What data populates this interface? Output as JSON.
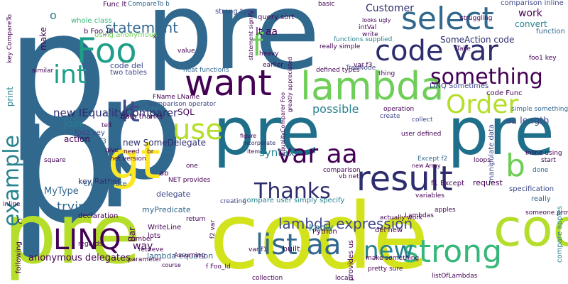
{
  "word_cloud": {
    "background": "#ffffff",
    "palette": [
      "#440154",
      "#482878",
      "#3e4989",
      "#31688e",
      "#26828e",
      "#1f9e89",
      "#35b779",
      "#6ece58",
      "#b5de2b",
      "#fde725"
    ],
    "words": [
      "p",
      "pre",
      "p",
      "p",
      "pre",
      "code",
      "pre",
      "code",
      "pre",
      "code",
      "select",
      "code var",
      "lambda",
      "want",
      "Foo",
      "gt",
      "result",
      "strong",
      "list aa",
      "var aa",
      "LINQ",
      "Thanks",
      "lt",
      "use",
      "int",
      "Order",
      "something",
      "example",
      "new",
      "lambda expression",
      "b",
      "f",
      "statement",
      "new IEqualityComparer",
      "syntax",
      "aa length",
      "possible",
      "key Rather",
      "MyType",
      "trying",
      "lt aa",
      "SomeAction code",
      "strong type",
      "Customer",
      "work",
      "convert",
      "function",
      "comparison inline",
      "query sort",
      "Func lt",
      "CompareTo b",
      "o",
      "make",
      "whole class",
      "b Foo_Id",
      "using anonymous",
      "code del",
      "two tables",
      "neat functions",
      "functions supplied",
      "defined types",
      "TreeNode",
      "LINQ Sometimes",
      "code Func",
      "simple something",
      "print",
      "join",
      "action",
      "new SomeDelegate",
      "f3 f1",
      "data thanks",
      "comparison operator",
      "FName LName",
      "SQL",
      "run",
      "tell",
      "foo2 key",
      "figure",
      "incorporate",
      "collect",
      "user defined",
      "operation",
      "create",
      "give",
      "need",
      "br",
      "one",
      "ab",
      "delegate",
      "changeDate",
      "myPredicate",
      "declaration",
      "return",
      "creating",
      "compare user simply specify",
      "know",
      "del new",
      "built",
      "Python",
      "loops",
      "inline using",
      "manipulate data",
      "start",
      "done",
      "request",
      "specification",
      "really",
      "apples",
      "f1 Except",
      "Except f2",
      "comparison",
      "vb net",
      "variables",
      "someone provide",
      "compare apples",
      "lambda equation",
      "way",
      "Bar",
      "WriteLine",
      "lots",
      "number",
      "retrieve",
      "regards",
      "anonymous delegates",
      "following",
      "local1",
      "Assuming",
      "NET provides",
      "f Foo_Id",
      "var f1",
      "collection",
      "provides us",
      "make something",
      "pretty sure",
      "listOfLambdas",
      "really simple",
      "struggling",
      "Take",
      "foo1 key",
      "heavy",
      "earlier",
      "value",
      "statement signify",
      "greatly appreciated",
      "intVal",
      "write",
      "looks ugly",
      "basic",
      "key CompareTo",
      "similar",
      "IEqualityComparer Foo",
      "f2 var",
      "item",
      "parameter",
      "course",
      "inline",
      "c",
      "net version",
      "square",
      "Lambdas",
      "actually work",
      "var f3",
      "thing",
      "x",
      "new Array"
    ]
  }
}
